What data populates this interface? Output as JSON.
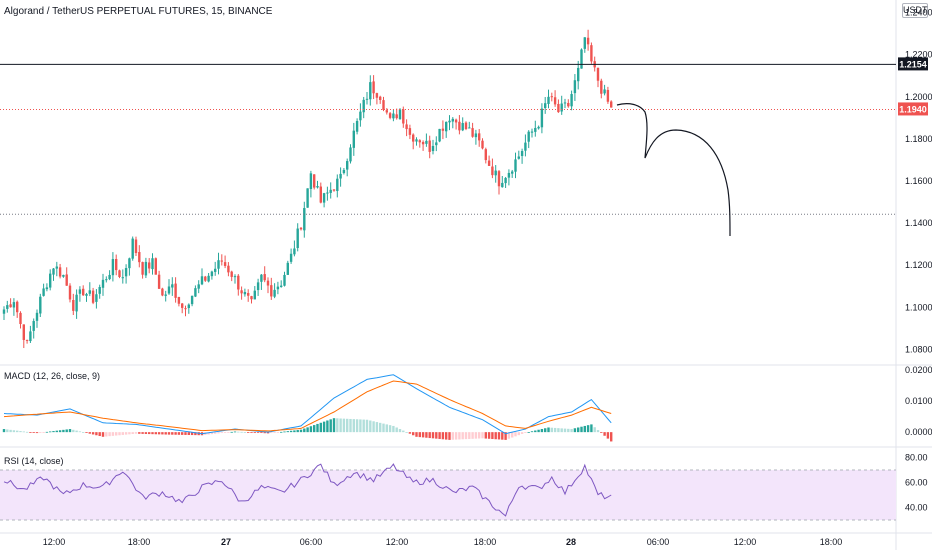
{
  "header": {
    "title": "Algorand / TetherUS PERPETUAL FUTURES, 15, BINANCE",
    "unit": "USDT"
  },
  "chart_data": [
    {
      "type": "candlestick",
      "title": "Algorand / TetherUS PERPETUAL FUTURES, 15, BINANCE",
      "ylabel": "USDT",
      "ylim": [
        1.074,
        1.246
      ],
      "yticks": [
        "1.2400",
        "1.2200",
        "1.2000",
        "1.1800",
        "1.1600",
        "1.1400",
        "1.1200",
        "1.1000",
        "1.0800"
      ],
      "yticks_values": [
        1.24,
        1.22,
        1.2,
        1.18,
        1.16,
        1.14,
        1.12,
        1.1,
        1.08
      ],
      "xticks": [
        {
          "label": "12:00",
          "bold": false
        },
        {
          "label": "18:00",
          "bold": false
        },
        {
          "label": "27",
          "bold": true
        },
        {
          "label": "06:00",
          "bold": false
        },
        {
          "label": "12:00",
          "bold": false
        },
        {
          "label": "18:00",
          "bold": false
        },
        {
          "label": "28",
          "bold": true
        },
        {
          "label": "06:00",
          "bold": false
        },
        {
          "label": "12:00",
          "bold": false
        },
        {
          "label": "18:00",
          "bold": false
        }
      ],
      "horizontal_levels": [
        {
          "value": 1.2154,
          "label": "1.2154",
          "style": "solid",
          "color": "#131722"
        },
        {
          "value": 1.194,
          "label": "1.1940",
          "style": "dotted",
          "color": "#ef5350"
        },
        {
          "value": 1.1442,
          "label": "",
          "style": "dotted",
          "color": "#787b86"
        }
      ],
      "projection_drawing": "hand-drawn curve forecasting decline from ~1.195 toward ~1.130",
      "up_color": "#26a69a",
      "down_color": "#ef5350",
      "anchors": [
        [
          0,
          1.099
        ],
        [
          3,
          1.104
        ],
        [
          5,
          1.092
        ],
        [
          7,
          1.082
        ],
        [
          9,
          1.094
        ],
        [
          12,
          1.108
        ],
        [
          15,
          1.12
        ],
        [
          18,
          1.115
        ],
        [
          21,
          1.101
        ],
        [
          24,
          1.108
        ],
        [
          27,
          1.104
        ],
        [
          30,
          1.112
        ],
        [
          33,
          1.12
        ],
        [
          36,
          1.114
        ],
        [
          39,
          1.131
        ],
        [
          42,
          1.118
        ],
        [
          45,
          1.121
        ],
        [
          48,
          1.105
        ],
        [
          51,
          1.11
        ],
        [
          54,
          1.1
        ],
        [
          57,
          1.106
        ],
        [
          60,
          1.112
        ],
        [
          63,
          1.117
        ],
        [
          66,
          1.122
        ],
        [
          69,
          1.116
        ],
        [
          72,
          1.108
        ],
        [
          75,
          1.101
        ],
        [
          78,
          1.114
        ],
        [
          81,
          1.108
        ],
        [
          84,
          1.112
        ],
        [
          87,
          1.124
        ],
        [
          90,
          1.14
        ],
        [
          93,
          1.164
        ],
        [
          96,
          1.15
        ],
        [
          99,
          1.156
        ],
        [
          102,
          1.161
        ],
        [
          105,
          1.178
        ],
        [
          108,
          1.192
        ],
        [
          111,
          1.205
        ],
        [
          114,
          1.201
        ],
        [
          117,
          1.188
        ],
        [
          120,
          1.194
        ],
        [
          123,
          1.182
        ],
        [
          126,
          1.18
        ],
        [
          129,
          1.176
        ],
        [
          132,
          1.184
        ],
        [
          135,
          1.191
        ],
        [
          138,
          1.187
        ],
        [
          141,
          1.184
        ],
        [
          144,
          1.178
        ],
        [
          147,
          1.168
        ],
        [
          150,
          1.16
        ],
        [
          153,
          1.165
        ],
        [
          156,
          1.172
        ],
        [
          159,
          1.181
        ],
        [
          162,
          1.188
        ],
        [
          165,
          1.2
        ],
        [
          168,
          1.193
        ],
        [
          171,
          1.196
        ],
        [
          174,
          1.212
        ],
        [
          176,
          1.228
        ],
        [
          178,
          1.216
        ],
        [
          181,
          1.204
        ],
        [
          184,
          1.194
        ]
      ]
    },
    {
      "type": "macd",
      "label": "MACD (12, 26, close, 9)",
      "ylim": [
        -0.0035,
        0.021
      ],
      "yticks": [
        "0.0200",
        "0.0100",
        "0.0000"
      ],
      "yticks_values": [
        0.02,
        0.01,
        0.0
      ],
      "macd_color": "#2196f3",
      "signal_color": "#ff6d00",
      "macd_anchors": [
        [
          0,
          0.006
        ],
        [
          10,
          0.0055
        ],
        [
          20,
          0.0075
        ],
        [
          30,
          0.003
        ],
        [
          40,
          0.0025
        ],
        [
          50,
          0.001
        ],
        [
          60,
          -0.0005
        ],
        [
          70,
          0.001
        ],
        [
          80,
          0.0
        ],
        [
          90,
          0.002
        ],
        [
          100,
          0.011
        ],
        [
          110,
          0.017
        ],
        [
          118,
          0.0185
        ],
        [
          125,
          0.014
        ],
        [
          135,
          0.008
        ],
        [
          145,
          0.004
        ],
        [
          152,
          -0.0005
        ],
        [
          158,
          0.001
        ],
        [
          165,
          0.005
        ],
        [
          172,
          0.0065
        ],
        [
          178,
          0.0105
        ],
        [
          184,
          0.003
        ]
      ],
      "signal_anchors": [
        [
          0,
          0.005
        ],
        [
          10,
          0.0058
        ],
        [
          20,
          0.0065
        ],
        [
          30,
          0.0045
        ],
        [
          40,
          0.003
        ],
        [
          50,
          0.0018
        ],
        [
          60,
          0.0005
        ],
        [
          70,
          0.0008
        ],
        [
          80,
          0.0004
        ],
        [
          90,
          0.0012
        ],
        [
          100,
          0.0065
        ],
        [
          110,
          0.013
        ],
        [
          118,
          0.0165
        ],
        [
          125,
          0.0155
        ],
        [
          135,
          0.0105
        ],
        [
          145,
          0.006
        ],
        [
          152,
          0.002
        ],
        [
          158,
          0.0012
        ],
        [
          165,
          0.0035
        ],
        [
          172,
          0.0055
        ],
        [
          178,
          0.008
        ],
        [
          184,
          0.006
        ]
      ]
    },
    {
      "type": "rsi",
      "label": "RSI (14, close)",
      "ylim": [
        22,
        86
      ],
      "yticks": [
        "80.00",
        "60.00",
        "40.00"
      ],
      "yticks_values": [
        80,
        60,
        40
      ],
      "band": [
        30,
        70
      ],
      "line_color": "#7e57c2",
      "band_color": "#f3e5fb",
      "anchors": [
        [
          0,
          62
        ],
        [
          6,
          54
        ],
        [
          12,
          64
        ],
        [
          18,
          50
        ],
        [
          24,
          58
        ],
        [
          30,
          56
        ],
        [
          36,
          70
        ],
        [
          42,
          48
        ],
        [
          48,
          52
        ],
        [
          54,
          44
        ],
        [
          60,
          56
        ],
        [
          66,
          62
        ],
        [
          72,
          44
        ],
        [
          78,
          56
        ],
        [
          84,
          52
        ],
        [
          90,
          62
        ],
        [
          96,
          74
        ],
        [
          100,
          58
        ],
        [
          106,
          68
        ],
        [
          112,
          62
        ],
        [
          118,
          73
        ],
        [
          124,
          60
        ],
        [
          130,
          62
        ],
        [
          136,
          52
        ],
        [
          142,
          56
        ],
        [
          148,
          42
        ],
        [
          152,
          33
        ],
        [
          156,
          58
        ],
        [
          162,
          55
        ],
        [
          166,
          64
        ],
        [
          170,
          52
        ],
        [
          176,
          73
        ],
        [
          180,
          50
        ],
        [
          184,
          48
        ]
      ]
    }
  ]
}
